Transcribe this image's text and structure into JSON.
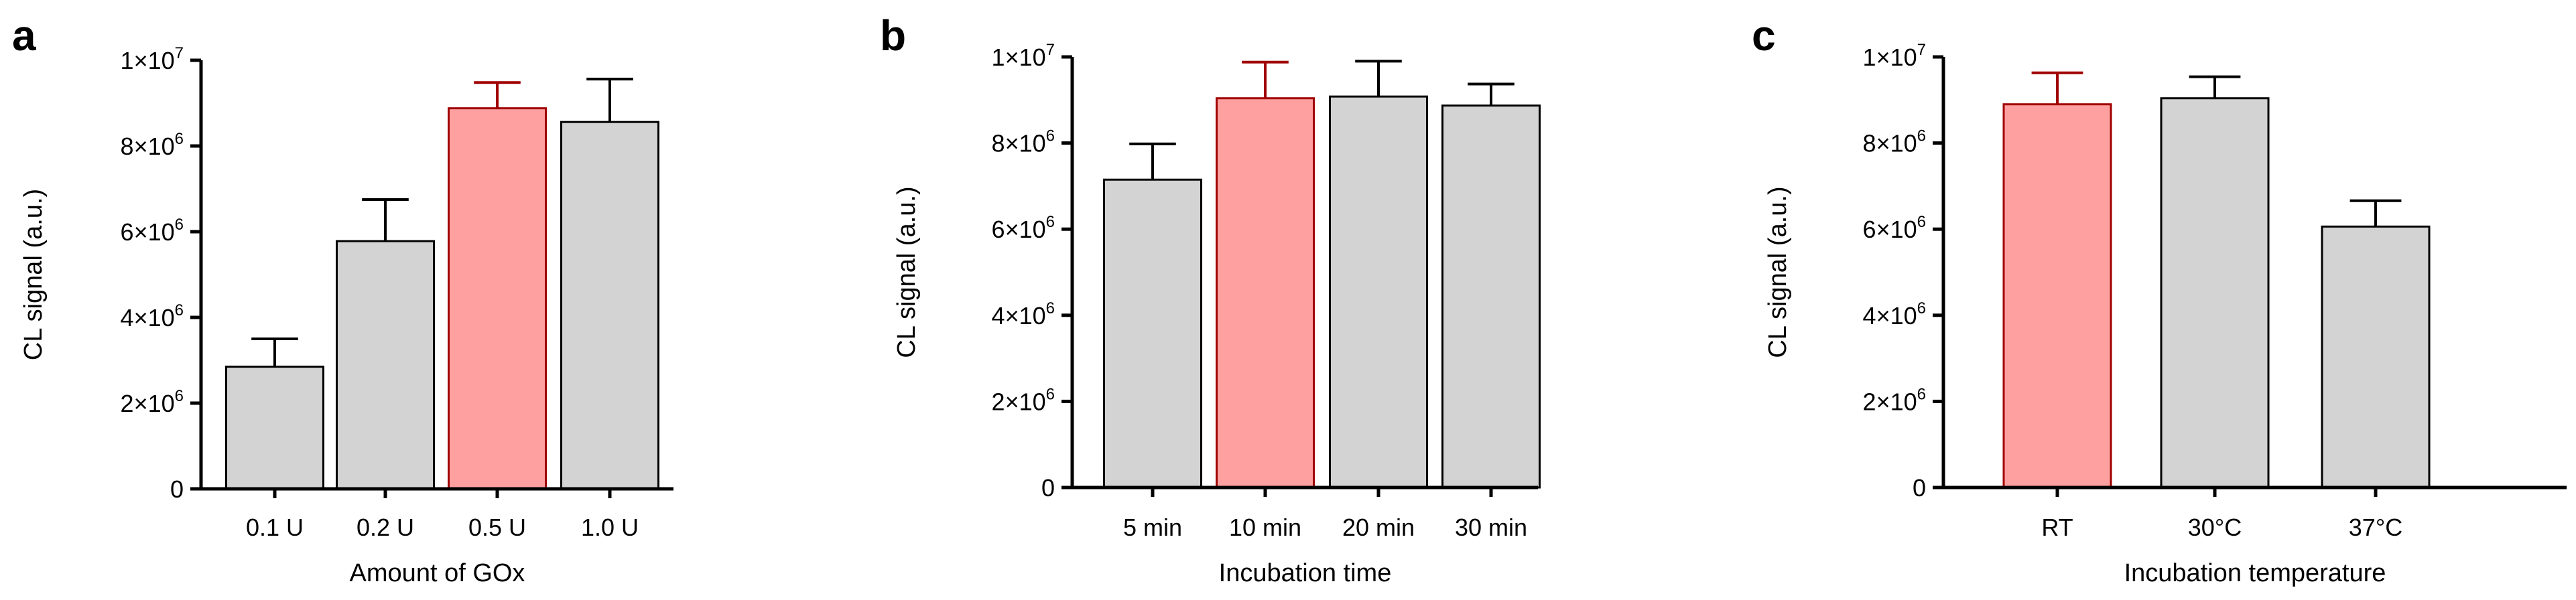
{
  "colors": {
    "bar_default": "#d3d3d3",
    "bar_highlight": "#ffa0a0",
    "outline_default": "#000000",
    "outline_highlight": "#a00000"
  },
  "chart_data": [
    {
      "panel": "a",
      "type": "bar",
      "ylabel": "CL signal (a.u.)",
      "xlabel": "Amount of GOx",
      "ylim": [
        0,
        10000000
      ],
      "yticks": [
        {
          "value": 0,
          "label": "0"
        },
        {
          "value": 2000000,
          "label": "2×10",
          "exp": "6"
        },
        {
          "value": 4000000,
          "label": "4×10",
          "exp": "6"
        },
        {
          "value": 6000000,
          "label": "6×10",
          "exp": "6"
        },
        {
          "value": 8000000,
          "label": "8×10",
          "exp": "6"
        },
        {
          "value": 10000000,
          "label": "1×10",
          "exp": "7"
        }
      ],
      "categories": [
        "0.1 U",
        "0.2 U",
        "0.5 U",
        "1.0 U"
      ],
      "values": [
        2850000,
        5780000,
        8880000,
        8560000
      ],
      "errors": [
        650000,
        970000,
        600000,
        1000000
      ],
      "highlight": [
        false,
        false,
        true,
        false
      ]
    },
    {
      "panel": "b",
      "type": "bar",
      "ylabel": "CL signal (a.u.)",
      "xlabel": "Incubation time",
      "ylim": [
        0,
        10000000
      ],
      "yticks": [
        {
          "value": 0,
          "label": "0"
        },
        {
          "value": 2000000,
          "label": "2×10",
          "exp": "6"
        },
        {
          "value": 4000000,
          "label": "4×10",
          "exp": "6"
        },
        {
          "value": 6000000,
          "label": "6×10",
          "exp": "6"
        },
        {
          "value": 8000000,
          "label": "8×10",
          "exp": "6"
        },
        {
          "value": 10000000,
          "label": "1×10",
          "exp": "7"
        }
      ],
      "categories": [
        "5 min",
        "10 min",
        "20 min",
        "30 min"
      ],
      "values": [
        7150000,
        9040000,
        9080000,
        8870000
      ],
      "errors": [
        830000,
        840000,
        820000,
        500000
      ],
      "highlight": [
        false,
        true,
        false,
        false
      ]
    },
    {
      "panel": "c",
      "type": "bar",
      "ylabel": "CL signal (a.u.)",
      "xlabel": "Incubation temperature",
      "ylim": [
        0,
        10000000
      ],
      "yticks": [
        {
          "value": 0,
          "label": "0"
        },
        {
          "value": 2000000,
          "label": "2×10",
          "exp": "6"
        },
        {
          "value": 4000000,
          "label": "4×10",
          "exp": "6"
        },
        {
          "value": 6000000,
          "label": "6×10",
          "exp": "6"
        },
        {
          "value": 8000000,
          "label": "8×10",
          "exp": "6"
        },
        {
          "value": 10000000,
          "label": "1×10",
          "exp": "7"
        }
      ],
      "categories": [
        "RT",
        "30°C",
        "37°C"
      ],
      "values": [
        8900000,
        9040000,
        6060000
      ],
      "errors": [
        730000,
        500000,
        600000
      ],
      "highlight": [
        true,
        false,
        false
      ]
    }
  ]
}
